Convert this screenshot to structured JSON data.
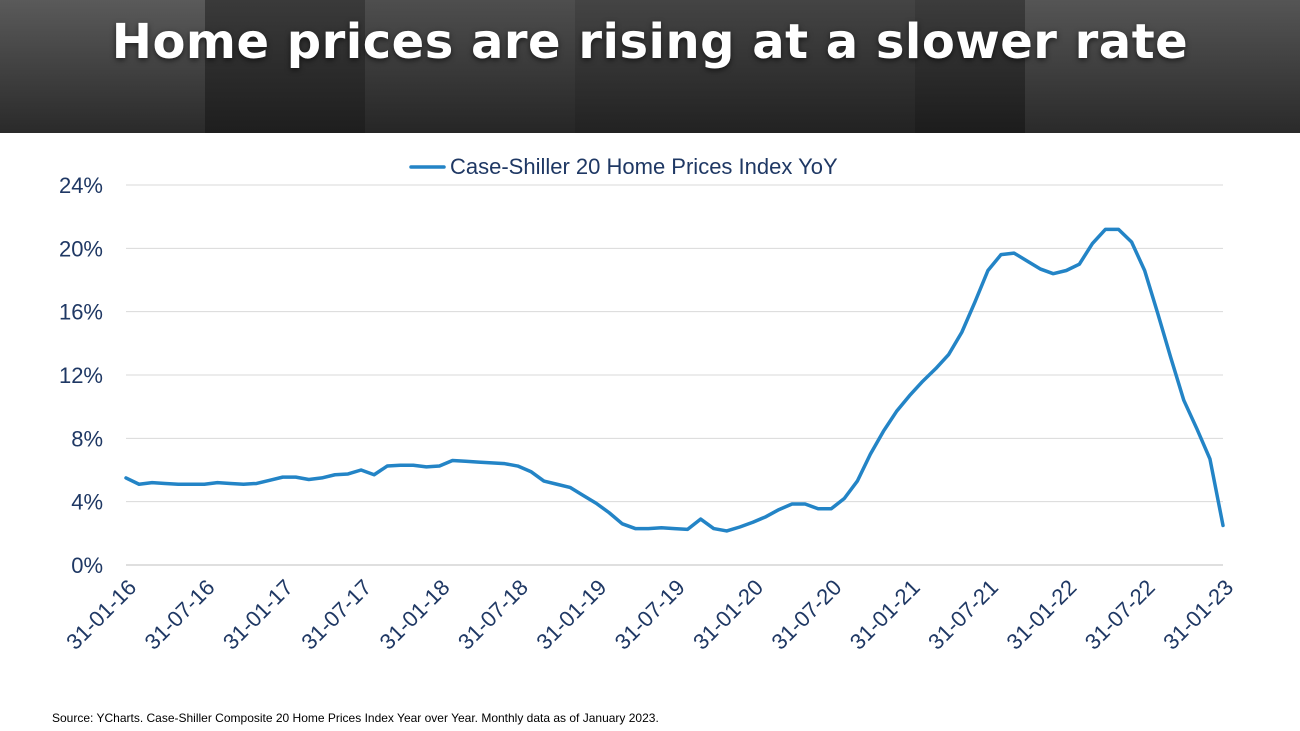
{
  "header": {
    "title": "Home prices are rising at a slower rate"
  },
  "footer": {
    "source": "Source: YCharts. Case-Shiller Composite 20 Home Prices Index Year over Year. Monthly data as of January 2023."
  },
  "chart_data": {
    "type": "line",
    "legend_position": "top-center",
    "grid": true,
    "x_tick_labels": [
      "31-01-16",
      "31-07-16",
      "31-01-17",
      "31-07-17",
      "31-01-18",
      "31-07-18",
      "31-01-19",
      "31-07-19",
      "31-01-20",
      "31-07-20",
      "31-01-21",
      "31-07-21",
      "31-01-22",
      "31-07-22",
      "31-01-23"
    ],
    "y_tick_labels": [
      "0%",
      "4%",
      "8%",
      "12%",
      "16%",
      "20%",
      "24%"
    ],
    "ylim": [
      0,
      24
    ],
    "xlim": [
      "2016-01-31",
      "2023-01-31"
    ],
    "series": [
      {
        "name": "Case-Shiller 20 Home Prices Index YoY",
        "color": "#2384C6",
        "x": [
          "2016-01",
          "2016-02",
          "2016-03",
          "2016-04",
          "2016-05",
          "2016-06",
          "2016-07",
          "2016-08",
          "2016-09",
          "2016-10",
          "2016-11",
          "2016-12",
          "2017-01",
          "2017-02",
          "2017-03",
          "2017-04",
          "2017-05",
          "2017-06",
          "2017-07",
          "2017-08",
          "2017-09",
          "2017-10",
          "2017-11",
          "2017-12",
          "2018-01",
          "2018-02",
          "2018-03",
          "2018-04",
          "2018-05",
          "2018-06",
          "2018-07",
          "2018-08",
          "2018-09",
          "2018-10",
          "2018-11",
          "2018-12",
          "2019-01",
          "2019-02",
          "2019-03",
          "2019-04",
          "2019-05",
          "2019-06",
          "2019-07",
          "2019-08",
          "2019-09",
          "2019-10",
          "2019-11",
          "2019-12",
          "2020-01",
          "2020-02",
          "2020-03",
          "2020-04",
          "2020-05",
          "2020-06",
          "2020-07",
          "2020-08",
          "2020-09",
          "2020-10",
          "2020-11",
          "2020-12",
          "2021-01",
          "2021-02",
          "2021-03",
          "2021-04",
          "2021-05",
          "2021-06",
          "2021-07",
          "2021-08",
          "2021-09",
          "2021-10",
          "2021-11",
          "2021-12",
          "2022-01",
          "2022-02",
          "2022-03",
          "2022-04",
          "2022-05",
          "2022-06",
          "2022-07",
          "2022-08",
          "2022-09",
          "2022-10",
          "2022-11",
          "2022-12",
          "2023-01"
        ],
        "values": [
          5.5,
          5.1,
          5.2,
          5.15,
          5.1,
          5.1,
          5.1,
          5.2,
          5.15,
          5.1,
          5.15,
          5.35,
          5.55,
          5.55,
          5.4,
          5.5,
          5.7,
          5.75,
          6.0,
          5.7,
          6.25,
          6.3,
          6.3,
          6.2,
          6.25,
          6.6,
          6.55,
          6.5,
          6.45,
          6.4,
          6.25,
          5.9,
          5.3,
          5.1,
          4.9,
          4.4,
          3.9,
          3.3,
          2.6,
          2.3,
          2.3,
          2.35,
          2.3,
          2.25,
          2.9,
          2.3,
          2.15,
          2.4,
          2.7,
          3.05,
          3.5,
          3.85,
          3.85,
          3.55,
          3.55,
          4.2,
          5.3,
          7.0,
          8.45,
          9.7,
          10.7,
          11.6,
          12.4,
          13.3,
          14.7,
          16.6,
          18.6,
          19.6,
          19.7,
          19.2,
          18.7,
          18.4,
          18.6,
          19.0,
          20.3,
          21.2,
          21.2,
          20.4,
          18.6,
          15.9,
          13.1,
          10.4,
          8.6,
          6.7,
          2.5
        ]
      }
    ]
  }
}
